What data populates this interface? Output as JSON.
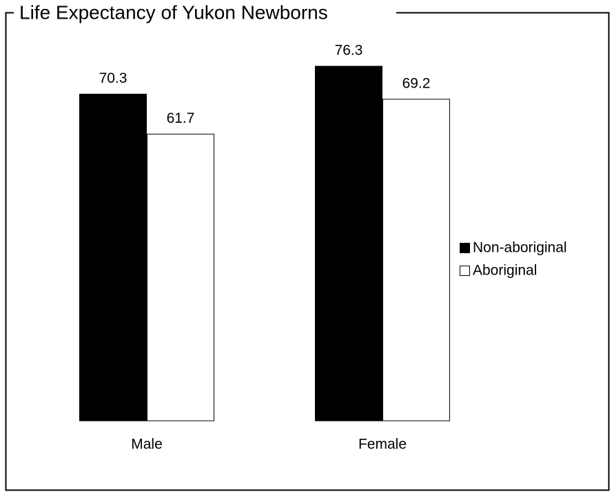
{
  "chart_data": {
    "type": "bar",
    "title": "Life Expectancy of Yukon Newborns",
    "categories": [
      "Male",
      "Female"
    ],
    "series": [
      {
        "name": "Non-aboriginal",
        "color": "#000000",
        "values": [
          70.3,
          76.3
        ]
      },
      {
        "name": "Aboriginal",
        "color": "#ffffff",
        "values": [
          61.7,
          69.2
        ]
      }
    ],
    "legend": "right"
  }
}
